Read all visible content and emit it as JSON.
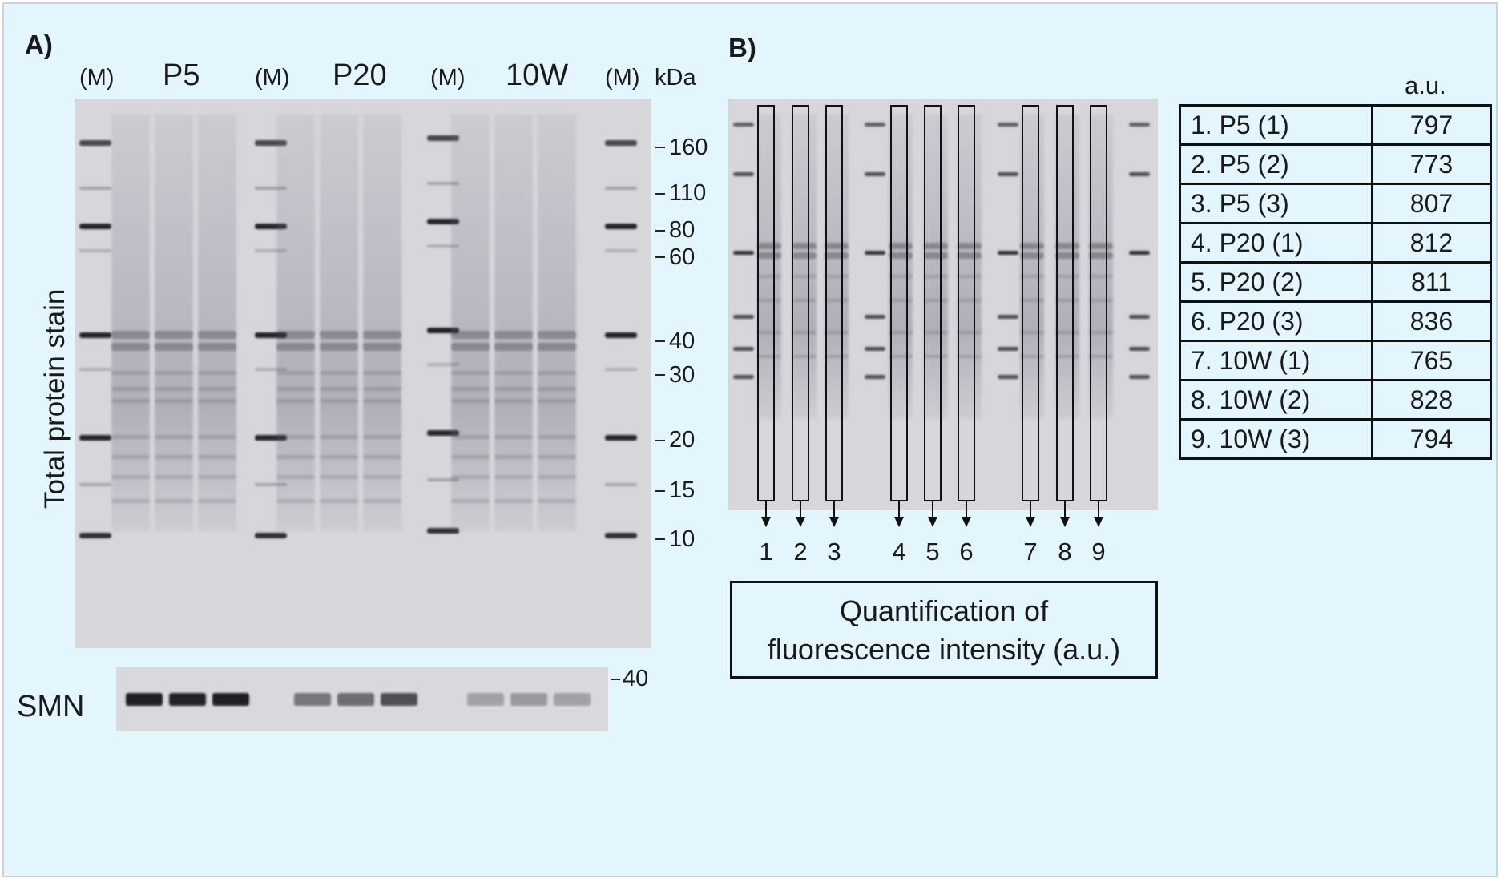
{
  "panel_a": {
    "label": "A)",
    "lane_headers": [
      "(M)",
      "P5",
      "(M)",
      "P20",
      "(M)",
      "10W",
      "(M)"
    ],
    "unit": "kDa",
    "mw_markers": [
      "160",
      "110",
      "80",
      "60",
      "40",
      "30",
      "20",
      "15",
      "10"
    ],
    "y_axis_label": "Total protein stain",
    "smn_label": "SMN",
    "smn_marker": "40"
  },
  "panel_b": {
    "label": "B)",
    "lane_numbers": [
      "1",
      "2",
      "3",
      "4",
      "5",
      "6",
      "7",
      "8",
      "9"
    ],
    "quant_box": [
      "Quantification of",
      "fluorescence intensity (a.u.)"
    ],
    "table_unit": "a.u.",
    "table": [
      {
        "sample": "1. P5 (1)",
        "value": "797"
      },
      {
        "sample": "2. P5 (2)",
        "value": "773"
      },
      {
        "sample": "3. P5 (3)",
        "value": "807"
      },
      {
        "sample": "4. P20 (1)",
        "value": "812"
      },
      {
        "sample": "5. P20 (2)",
        "value": "811"
      },
      {
        "sample": "6. P20 (3)",
        "value": "836"
      },
      {
        "sample": "7. 10W (1)",
        "value": "765"
      },
      {
        "sample": "8. 10W (2)",
        "value": "828"
      },
      {
        "sample": "9. 10W (3)",
        "value": "794"
      }
    ]
  },
  "colors": {
    "background": "#e3f5fd",
    "gel": "#d7d7db",
    "band": "#1c1c1c"
  }
}
